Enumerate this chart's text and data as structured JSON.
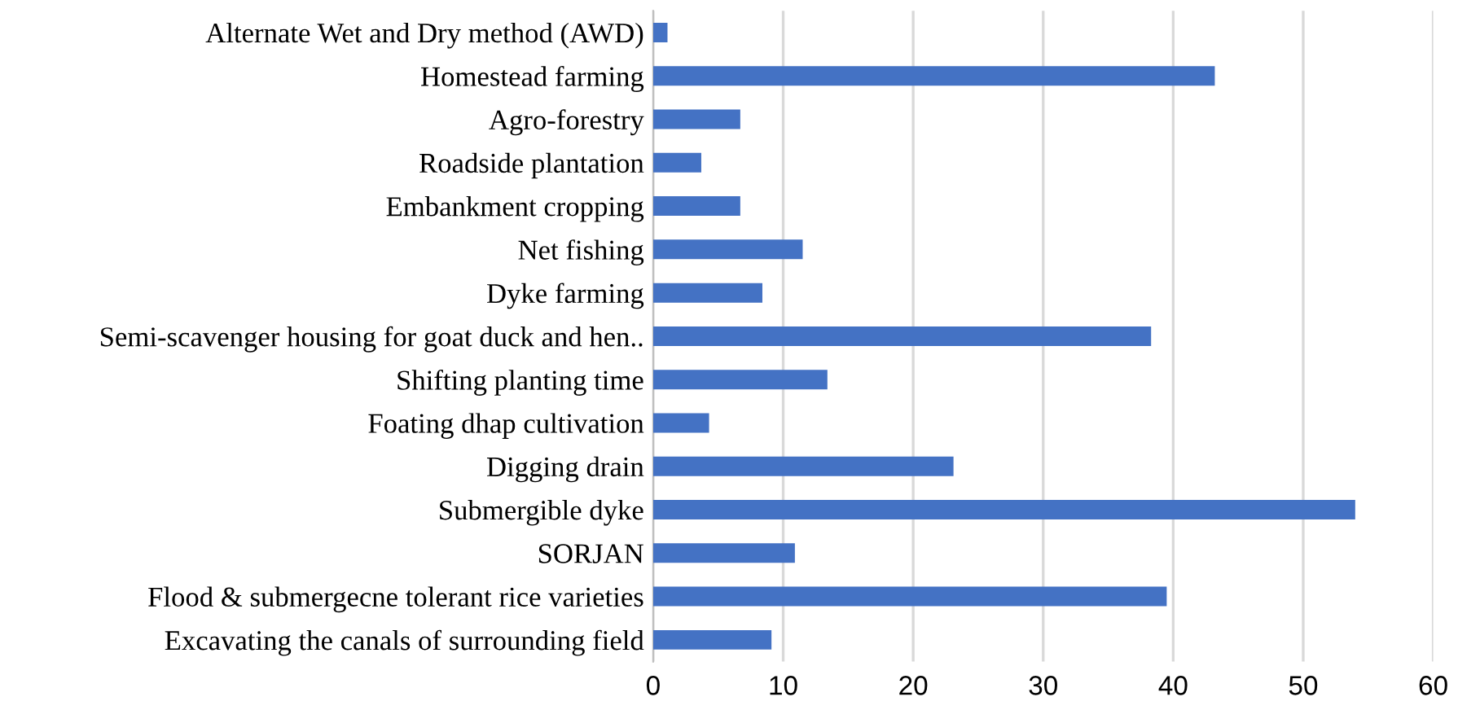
{
  "chart_data": {
    "type": "bar",
    "orientation": "horizontal",
    "categories": [
      "Alternate Wet and Dry method (AWD)",
      "Homestead farming",
      "Agro-forestry",
      "Roadside plantation",
      "Embankment cropping",
      "Net fishing",
      "Dyke farming",
      "Semi-scavenger housing for goat duck and hen..",
      "Shifting planting time",
      "Foating dhap cultivation",
      "Digging drain",
      "Submergible dyke",
      "SORJAN",
      "Flood & submergecne tolerant rice varieties",
      "Excavating the canals of surrounding field"
    ],
    "values": [
      1.1,
      43.2,
      6.7,
      3.7,
      6.7,
      11.5,
      8.4,
      38.3,
      13.4,
      4.3,
      23.1,
      54.0,
      10.9,
      39.5,
      9.1
    ],
    "color": "#4472c4",
    "xlim": [
      0,
      60
    ],
    "xticks": [
      0,
      10,
      20,
      30,
      40,
      50,
      60
    ],
    "grid": "x"
  }
}
